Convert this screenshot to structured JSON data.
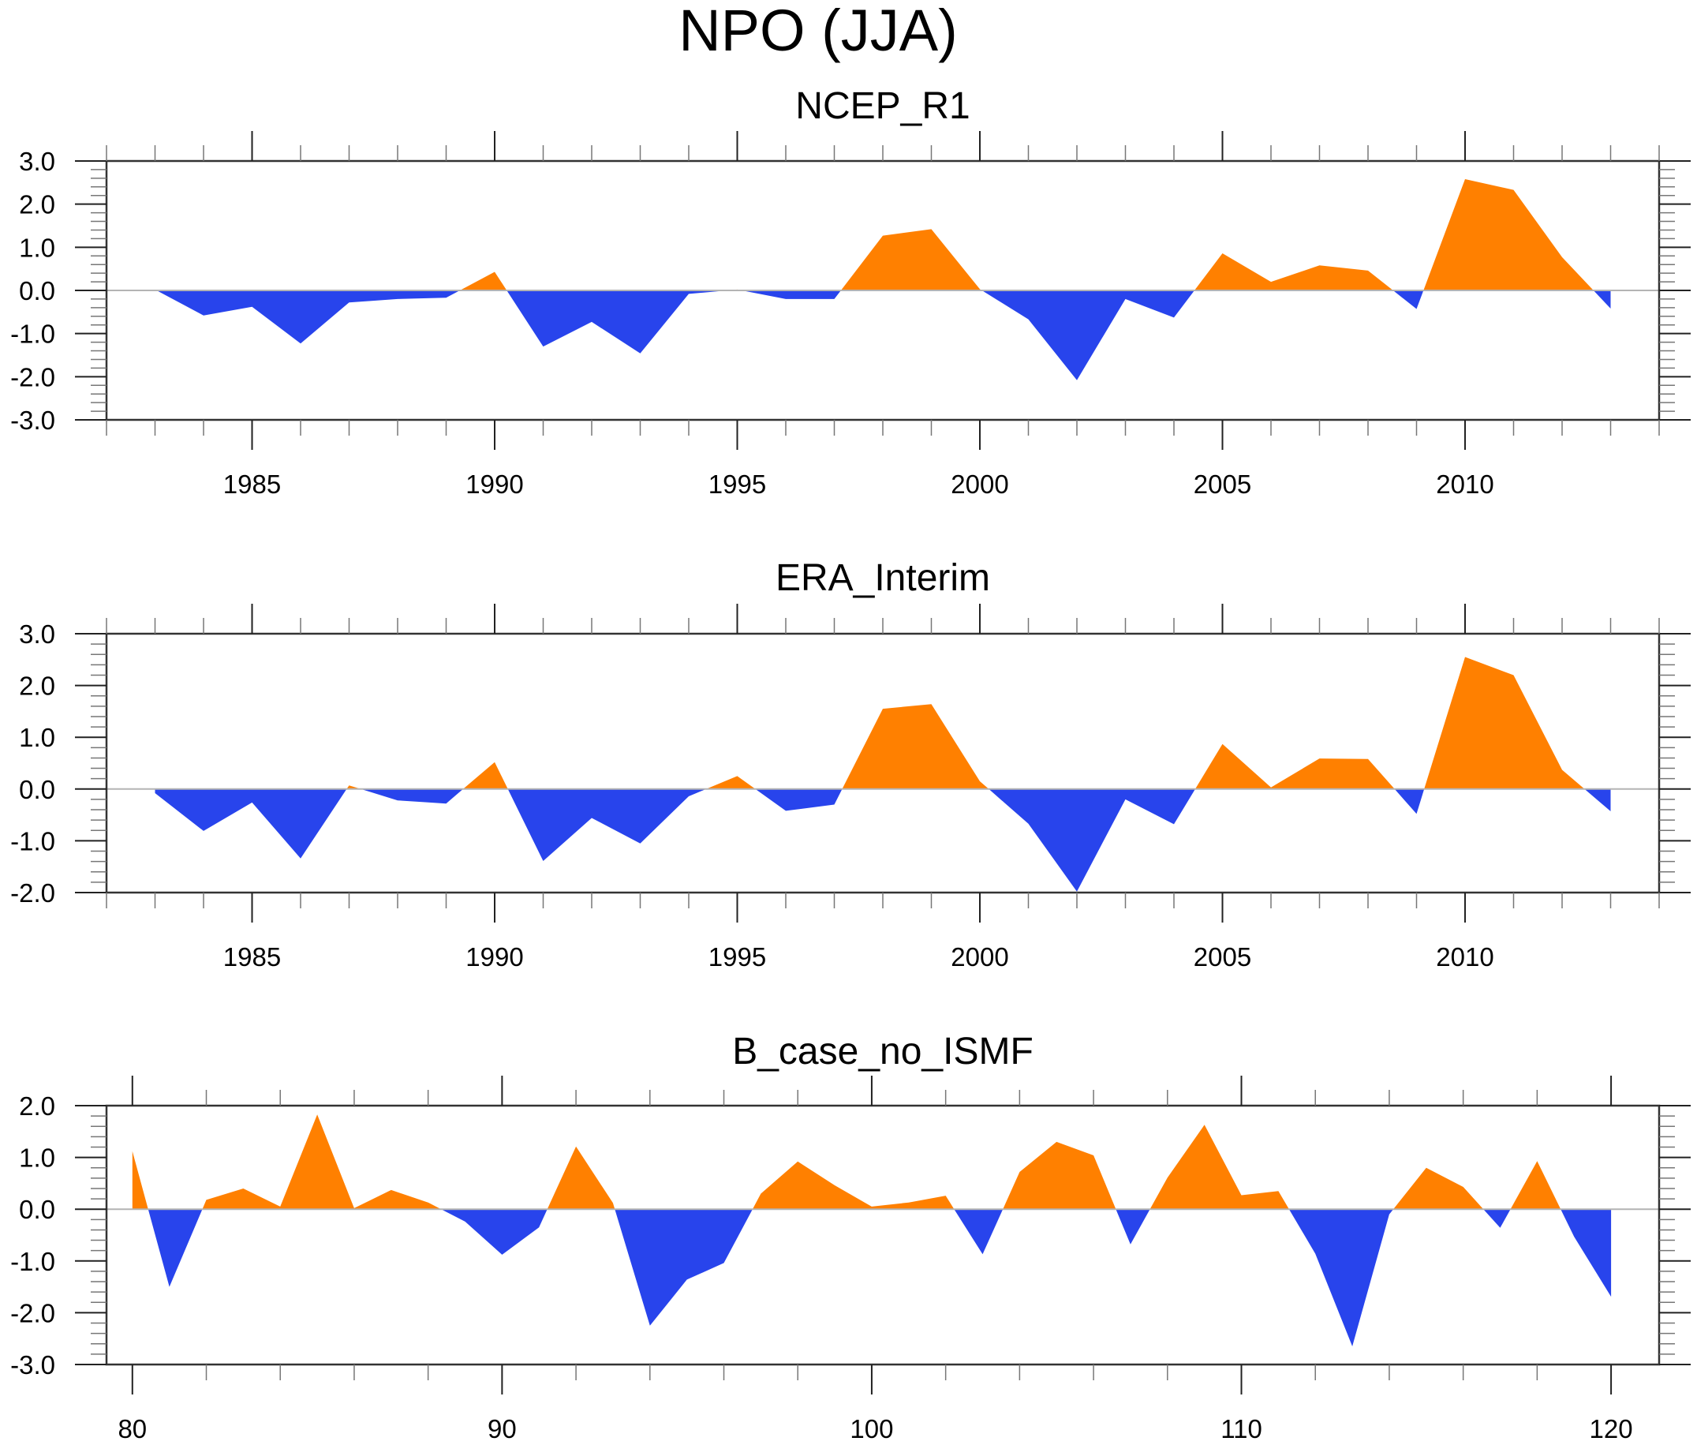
{
  "title": "NPO (JJA)",
  "colors": {
    "positive": "#FF8000",
    "negative": "#2844EC",
    "zero_line": "#B4B4B4",
    "frame": "#333333"
  },
  "chart_data": [
    {
      "type": "area",
      "title": "NCEP_R1",
      "xlabel": "",
      "ylabel": "",
      "fill_rule": "orange above zero, blue below zero",
      "xlim": [
        1982,
        2014
      ],
      "ylim": [
        -3.0,
        3.0
      ],
      "x_ticks": [
        1985,
        1990,
        1995,
        2000,
        2005,
        2010
      ],
      "x_tick_labels": [
        "1985",
        "1990",
        "1995",
        "2000",
        "2005",
        "2010"
      ],
      "x_minor_step": 1,
      "y_ticks": [
        3.0,
        2.0,
        1.0,
        0.0,
        -1.0,
        -2.0,
        -3.0
      ],
      "y_tick_labels": [
        "3.0",
        "2.0",
        "1.0",
        "0.0",
        "-1.0",
        "-2.0",
        "-3.0"
      ],
      "y_minor_step": 0.2,
      "grid": false,
      "x": [
        1983,
        1984,
        1985,
        1986,
        1987,
        1988,
        1989,
        1990,
        1991,
        1992,
        1993,
        1994,
        1995,
        1996,
        1997,
        1998,
        1999,
        2000,
        2001,
        2002,
        2003,
        2004,
        2005,
        2006,
        2007,
        2008,
        2009,
        2010,
        2011,
        2012,
        2013
      ],
      "values": [
        0.02,
        -0.58,
        -0.38,
        -1.23,
        -0.28,
        -0.2,
        -0.17,
        0.43,
        -1.3,
        -0.73,
        -1.46,
        -0.08,
        0.02,
        -0.2,
        -0.2,
        1.27,
        1.42,
        0.03,
        -0.67,
        -2.08,
        -0.2,
        -0.63,
        0.86,
        0.2,
        0.58,
        0.46,
        -0.43,
        2.58,
        2.33,
        0.77,
        -0.42
      ]
    },
    {
      "type": "area",
      "title": "ERA_Interim",
      "xlabel": "",
      "ylabel": "",
      "fill_rule": "orange above zero, blue below zero",
      "xlim": [
        1982,
        2014
      ],
      "ylim": [
        -2.0,
        3.0
      ],
      "x_ticks": [
        1985,
        1990,
        1995,
        2000,
        2005,
        2010
      ],
      "x_tick_labels": [
        "1985",
        "1990",
        "1995",
        "2000",
        "2005",
        "2010"
      ],
      "x_minor_step": 1,
      "y_ticks": [
        3.0,
        2.0,
        1.0,
        0.0,
        -1.0,
        -2.0
      ],
      "y_tick_labels": [
        "3.0",
        "2.0",
        "1.0",
        "0.0",
        "-1.0",
        "-2.0"
      ],
      "y_minor_step": 0.2,
      "grid": false,
      "x": [
        1983,
        1984,
        1985,
        1986,
        1987,
        1988,
        1989,
        1990,
        1991,
        1992,
        1993,
        1994,
        1995,
        1996,
        1997,
        1998,
        1999,
        2000,
        2001,
        2002,
        2003,
        2004,
        2005,
        2006,
        2007,
        2008,
        2009,
        2010,
        2011,
        2012,
        2013
      ],
      "values": [
        -0.08,
        -0.81,
        -0.26,
        -1.34,
        0.07,
        -0.22,
        -0.28,
        0.52,
        -1.39,
        -0.56,
        -1.05,
        -0.14,
        0.25,
        -0.42,
        -0.3,
        1.55,
        1.64,
        0.15,
        -0.67,
        -1.98,
        -0.2,
        -0.68,
        0.87,
        0.03,
        0.59,
        0.58,
        -0.48,
        2.55,
        2.2,
        0.37,
        -0.43
      ]
    },
    {
      "type": "area",
      "title": "B_case_no_ISMF",
      "xlabel": "",
      "ylabel": "",
      "fill_rule": "orange above zero, blue below zero",
      "xlim": [
        79.3,
        121.3
      ],
      "ylim": [
        -3.0,
        2.0
      ],
      "x_ticks": [
        80,
        90,
        100,
        110,
        120
      ],
      "x_tick_labels": [
        "80",
        "90",
        "100",
        "110",
        "120"
      ],
      "x_minor_step": 2,
      "y_ticks": [
        2.0,
        1.0,
        0.0,
        -1.0,
        -2.0,
        -3.0
      ],
      "y_tick_labels": [
        "2.0",
        "1.0",
        "0.0",
        "-1.0",
        "-2.0",
        "-3.0"
      ],
      "y_minor_step": 0.2,
      "grid": false,
      "x": [
        80,
        81,
        82,
        83,
        84,
        85,
        86,
        87,
        88,
        89,
        90,
        91,
        92,
        93,
        94,
        95,
        96,
        97,
        98,
        99,
        100,
        101,
        102,
        103,
        104,
        105,
        106,
        107,
        108,
        109,
        110,
        111,
        112,
        113,
        114,
        115,
        116,
        117,
        118,
        119,
        120
      ],
      "values": [
        1.12,
        -1.5,
        0.18,
        0.4,
        0.05,
        1.83,
        0.02,
        0.37,
        0.13,
        -0.24,
        -0.88,
        -0.35,
        1.21,
        0.12,
        -2.25,
        -1.36,
        -1.04,
        0.3,
        0.92,
        0.46,
        0.05,
        0.13,
        0.26,
        -0.87,
        0.72,
        1.3,
        1.04,
        -0.68,
        0.61,
        1.63,
        0.27,
        0.35,
        -0.86,
        -2.65,
        -0.1,
        0.8,
        0.43,
        -0.36,
        0.93,
        -0.53,
        -1.69
      ]
    }
  ]
}
